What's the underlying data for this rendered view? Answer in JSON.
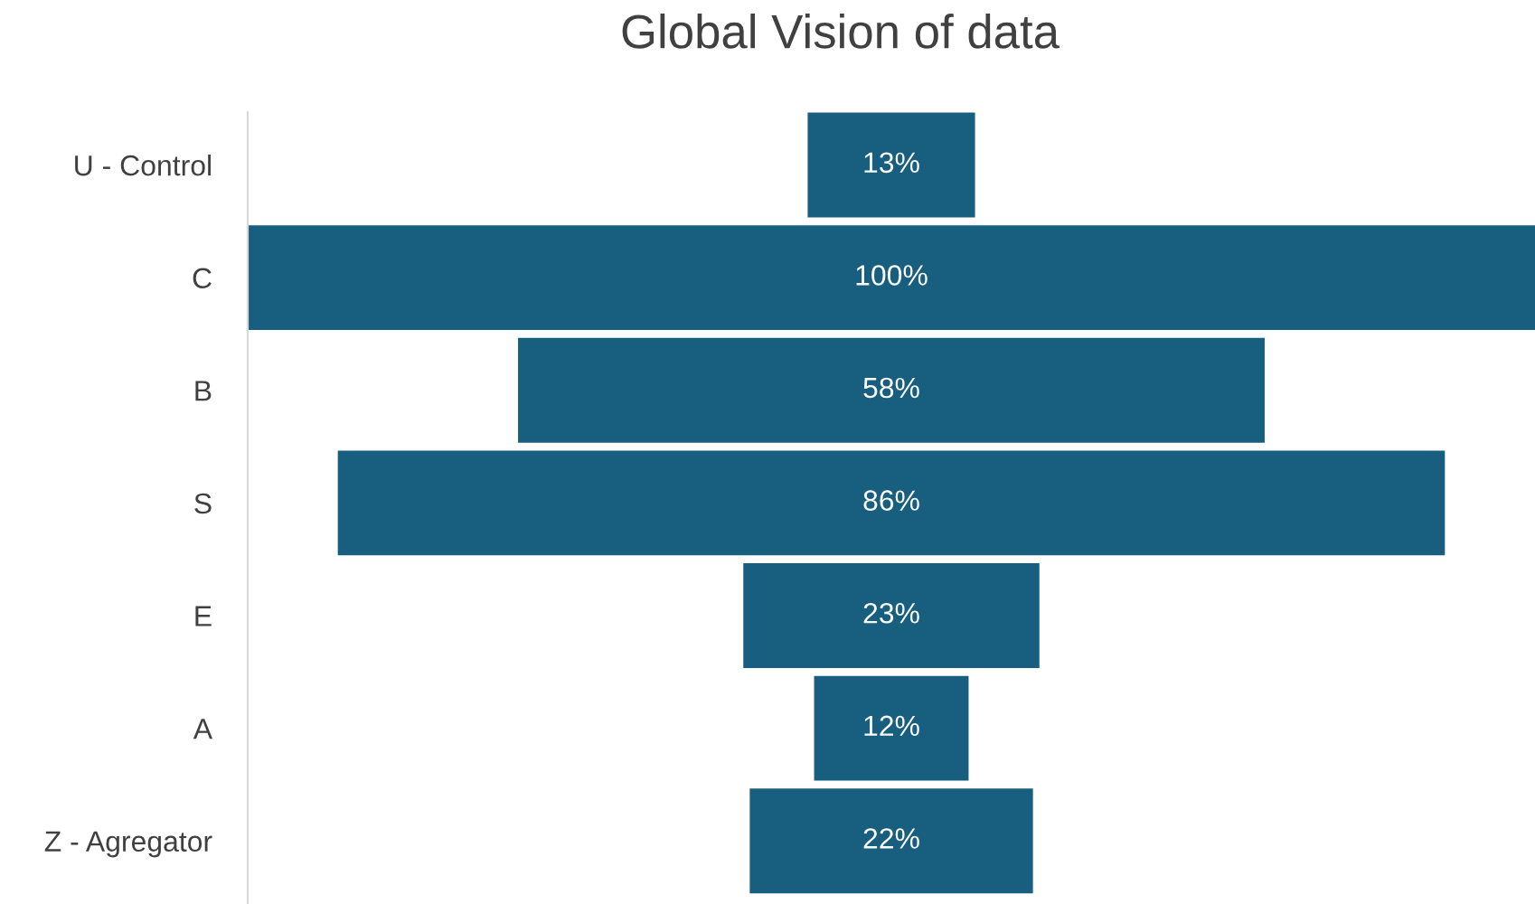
{
  "chart_data": {
    "type": "other",
    "title": "Global Vision of data",
    "categories": [
      "U - Control",
      "C",
      "B",
      "S",
      "E",
      "A",
      "Z - Agregator"
    ],
    "values": [
      13,
      100,
      58,
      86,
      23,
      12,
      22
    ],
    "value_labels": [
      "13%",
      "100%",
      "58%",
      "86%",
      "23%",
      "12%",
      "22%"
    ],
    "color": "#175e7f"
  }
}
